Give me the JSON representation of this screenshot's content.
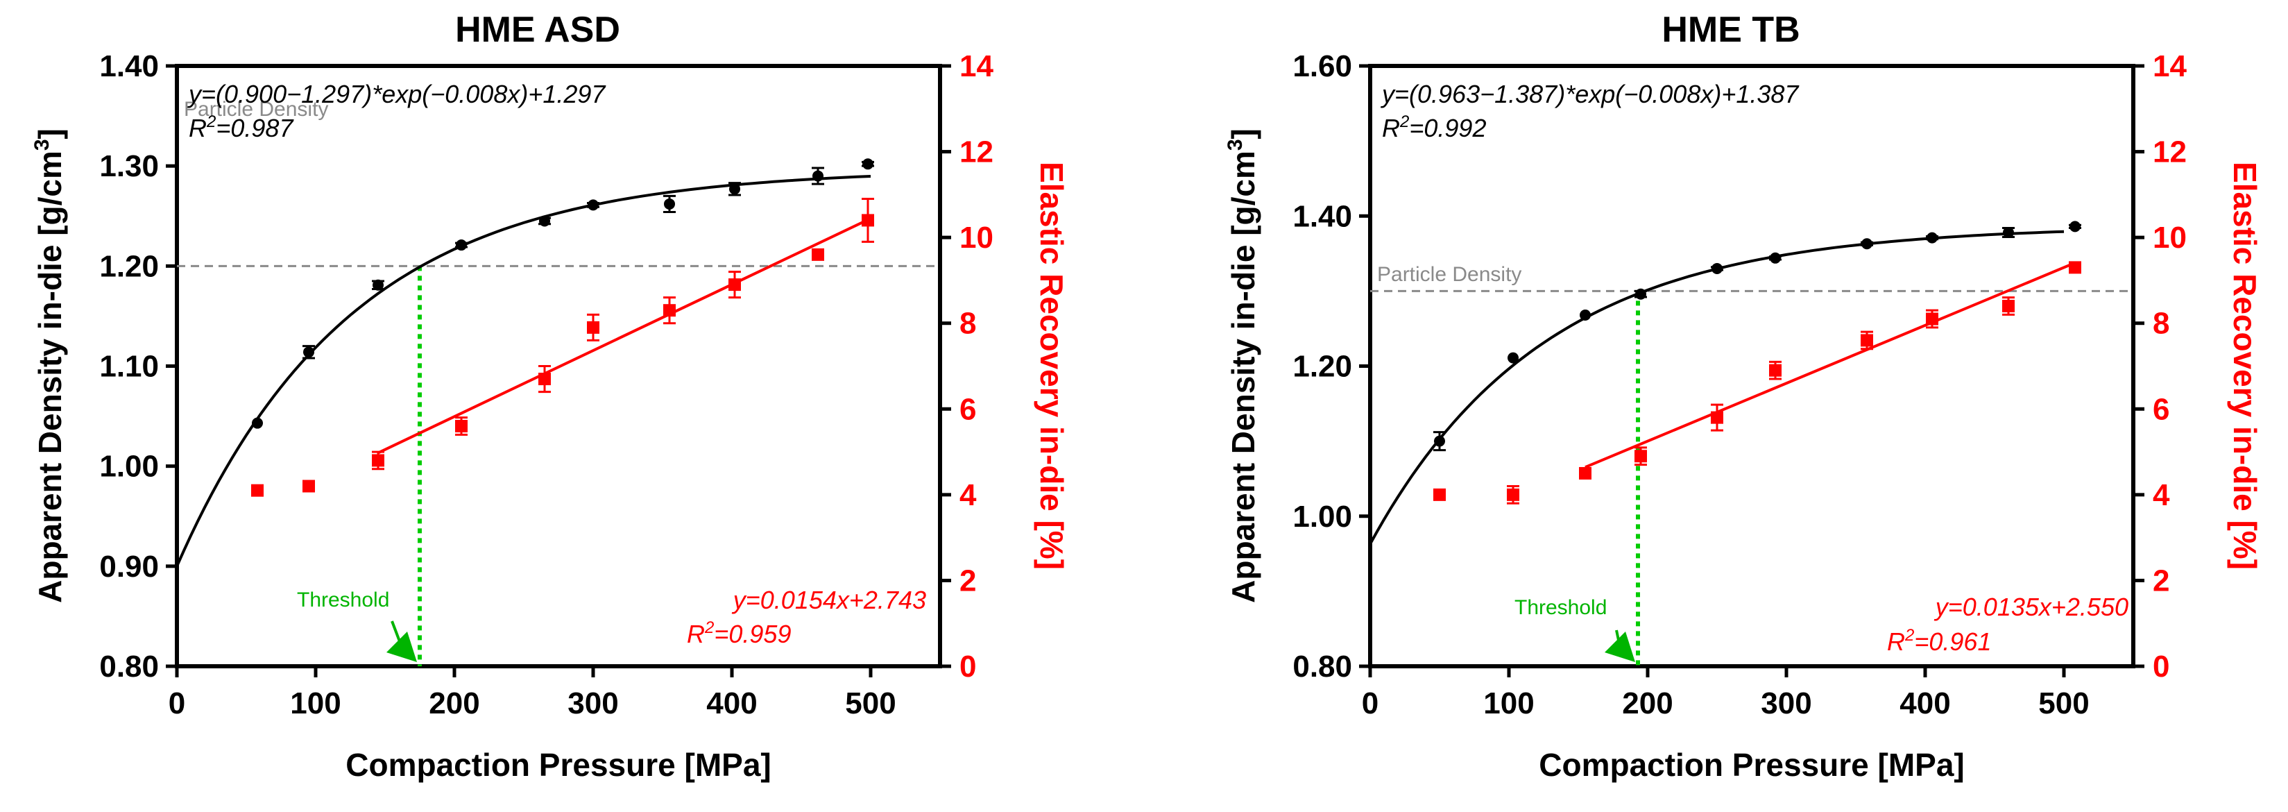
{
  "chart_data": [
    {
      "type": "scatter",
      "title": "HME ASD",
      "xlabel": "Compaction  Pressure  [MPa]",
      "ylabel": "Apparent  Density in-die [g/cm",
      "ylabel_sup": "3",
      "ylabel_end": "]",
      "y2label": "Elastic  Recovery in-die [%]",
      "xlim": [
        0,
        550
      ],
      "ylim": [
        0.8,
        1.4
      ],
      "y2lim": [
        0,
        14
      ],
      "xticks": [
        "0",
        "100",
        "200",
        "300",
        "400",
        "500"
      ],
      "yticks": [
        "0.80",
        "0.90",
        "1.00",
        "1.10",
        "1.20",
        "1.30",
        "1.40"
      ],
      "y2ticks": [
        "0",
        "2",
        "4",
        "6",
        "8",
        "10",
        "12",
        "14"
      ],
      "density": {
        "x": [
          58,
          95,
          145,
          205,
          265,
          300,
          355,
          402,
          462,
          498
        ],
        "y": [
          1.043,
          1.114,
          1.181,
          1.221,
          1.245,
          1.261,
          1.262,
          1.277,
          1.29,
          1.302
        ],
        "err": [
          0,
          0.006,
          0.004,
          0.002,
          0.003,
          0.002,
          0.008,
          0.006,
          0.008,
          0.002
        ]
      },
      "density_fit": {
        "a": 0.9,
        "b": 1.297,
        "k": 0.008
      },
      "density_eq": "y=(0.900−1.297)*exp(−0.008x)+1.297",
      "density_r2_label": "R",
      "density_r2_value": "=0.987",
      "recovery": {
        "x": [
          58,
          95,
          145,
          205,
          265,
          300,
          355,
          402,
          462,
          498
        ],
        "y": [
          4.1,
          4.2,
          4.8,
          5.6,
          6.7,
          7.9,
          8.3,
          8.9,
          9.6,
          10.4
        ],
        "err": [
          0,
          0,
          0.2,
          0.2,
          0.3,
          0.3,
          0.3,
          0.3,
          0,
          0.5
        ]
      },
      "recovery_fit": {
        "slope": 0.0154,
        "intercept": 2.743,
        "x_from": 145,
        "x_to": 498
      },
      "recovery_eq": "y=0.0154x+2.743",
      "recovery_r2_label": "R",
      "recovery_r2_value": "=0.959",
      "particle_density": 1.2,
      "particle_density_label": "Particle Density",
      "threshold_x": 175,
      "threshold_label": "Threshold",
      "colors": {
        "density": "#000000",
        "recovery": "#ff0000",
        "threshold": "#00cc00",
        "reference": "#8a8a8a"
      }
    },
    {
      "type": "scatter",
      "title": "HME  TB",
      "xlabel": "Compaction  Pressure  [MPa]",
      "ylabel": "Apparent  Density in-die [g/cm",
      "ylabel_sup": "3",
      "ylabel_end": "]",
      "y2label": "Elastic  Recovery in-die [%]",
      "xlim": [
        0,
        550
      ],
      "ylim": [
        0.8,
        1.6
      ],
      "y2lim": [
        0,
        14
      ],
      "xticks": [
        "0",
        "100",
        "200",
        "300",
        "400",
        "500"
      ],
      "yticks": [
        "0.80",
        "1.00",
        "1.20",
        "1.40",
        "1.60"
      ],
      "y2ticks": [
        "0",
        "2",
        "4",
        "6",
        "8",
        "10",
        "12",
        "14"
      ],
      "density": {
        "x": [
          50,
          103,
          155,
          195,
          250,
          292,
          358,
          405,
          460,
          508
        ],
        "y": [
          1.1,
          1.211,
          1.268,
          1.296,
          1.33,
          1.344,
          1.363,
          1.371,
          1.378,
          1.386
        ],
        "err": [
          0.012,
          0,
          0,
          0.004,
          0.002,
          0.002,
          0.002,
          0.002,
          0.006,
          0.002
        ]
      },
      "density_fit": {
        "a": 0.963,
        "b": 1.387,
        "k": 0.008
      },
      "density_eq": "y=(0.963−1.387)*exp(−0.008x)+1.387",
      "density_r2_label": "R",
      "density_r2_value": "=0.992",
      "recovery": {
        "x": [
          50,
          103,
          155,
          195,
          250,
          292,
          358,
          405,
          460,
          508
        ],
        "y": [
          4.0,
          4.0,
          4.5,
          4.9,
          5.8,
          6.9,
          7.6,
          8.1,
          8.4,
          9.3
        ],
        "err": [
          0,
          0.2,
          0,
          0.2,
          0.3,
          0.2,
          0.2,
          0.2,
          0.2,
          0.1
        ]
      },
      "recovery_fit": {
        "slope": 0.0135,
        "intercept": 2.55,
        "x_from": 155,
        "x_to": 508
      },
      "recovery_eq": "y=0.0135x+2.550",
      "recovery_r2_label": "R",
      "recovery_r2_value": "=0.961",
      "particle_density": 1.3,
      "particle_density_label": "Particle Density",
      "threshold_x": 193,
      "threshold_label": "Threshold",
      "colors": {
        "density": "#000000",
        "recovery": "#ff0000",
        "threshold": "#00cc00",
        "reference": "#8a8a8a"
      }
    }
  ]
}
